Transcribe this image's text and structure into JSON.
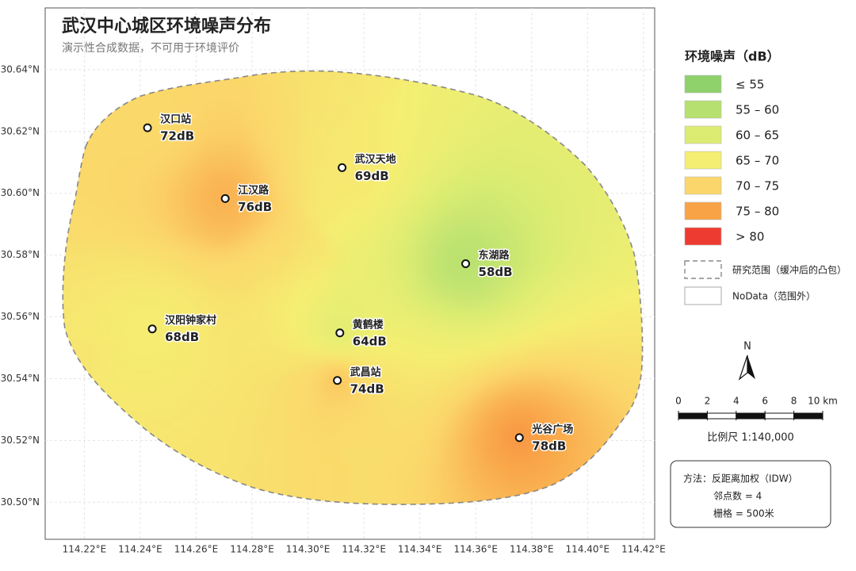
{
  "map": {
    "title": "武汉中心城区环境噪声分布",
    "subtitle": "演示性合成数据，不可用于环境评价",
    "xlim": [
      114.206,
      114.424
    ],
    "ylim": [
      30.488,
      30.66
    ],
    "xticks": [
      {
        "value": 114.22,
        "label": "114.22°E"
      },
      {
        "value": 114.24,
        "label": "114.24°E"
      },
      {
        "value": 114.26,
        "label": "114.26°E"
      },
      {
        "value": 114.28,
        "label": "114.28°E"
      },
      {
        "value": 114.3,
        "label": "114.30°E"
      },
      {
        "value": 114.32,
        "label": "114.32°E"
      },
      {
        "value": 114.34,
        "label": "114.34°E"
      },
      {
        "value": 114.36,
        "label": "114.36°E"
      },
      {
        "value": 114.38,
        "label": "114.38°E"
      },
      {
        "value": 114.4,
        "label": "114.40°E"
      },
      {
        "value": 114.42,
        "label": "114.42°E"
      }
    ],
    "yticks": [
      {
        "value": 30.5,
        "label": "30.50°N"
      },
      {
        "value": 30.52,
        "label": "30.52°N"
      },
      {
        "value": 30.54,
        "label": "30.54°N"
      },
      {
        "value": 30.56,
        "label": "30.56°N"
      },
      {
        "value": 30.58,
        "label": "30.58°N"
      },
      {
        "value": 30.6,
        "label": "30.60°N"
      },
      {
        "value": 30.62,
        "label": "30.62°N"
      },
      {
        "value": 30.64,
        "label": "30.64°N"
      }
    ],
    "stations": [
      {
        "name": "汉口站",
        "lon": 114.2426,
        "lat": 30.6212,
        "value": 72,
        "value_label": "72dB"
      },
      {
        "name": "江汉路",
        "lon": 114.2704,
        "lat": 30.5983,
        "value": 76,
        "value_label": "76dB"
      },
      {
        "name": "武汉天地",
        "lon": 114.3122,
        "lat": 30.6083,
        "value": 69,
        "value_label": "69dB"
      },
      {
        "name": "东湖路",
        "lon": 114.3564,
        "lat": 30.5772,
        "value": 58,
        "value_label": "58dB"
      },
      {
        "name": "汉阳钟家村",
        "lon": 114.2443,
        "lat": 30.5561,
        "value": 68,
        "value_label": "68dB"
      },
      {
        "name": "黄鹤楼",
        "lon": 114.3114,
        "lat": 30.5548,
        "value": 64,
        "value_label": "64dB"
      },
      {
        "name": "武昌站",
        "lon": 114.3105,
        "lat": 30.5394,
        "value": 74,
        "value_label": "74dB"
      },
      {
        "name": "光谷广场",
        "lon": 114.3756,
        "lat": 30.5209,
        "value": 78,
        "value_label": "78dB"
      }
    ]
  },
  "legend": {
    "title": "环境噪声（dB）",
    "class_breaks": [
      55,
      60,
      65,
      70,
      75,
      80
    ],
    "items": [
      {
        "label": "≤ 55",
        "color": "#8fd16a"
      },
      {
        "label": "55 – 60",
        "color": "#b6e070"
      },
      {
        "label": "60 – 65",
        "color": "#dcec72"
      },
      {
        "label": "65 – 70",
        "color": "#f4ef72"
      },
      {
        "label": "70 – 75",
        "color": "#fbd66a"
      },
      {
        "label": "75 – 80",
        "color": "#f9a347"
      },
      {
        "label": "> 80",
        "color": "#ee3b32"
      }
    ],
    "boundary_label": "研究范围（缓冲后的凸包）",
    "nodata_label": "NoData（范围外）"
  },
  "north_arrow": "N",
  "scale_bar": {
    "ticks": [
      0,
      2,
      4,
      6,
      8,
      {
        "value": 10,
        "label": "10 km"
      }
    ],
    "caption": "比例尺  1:140,000"
  },
  "method": [
    "方法：反距离加权（IDW）",
    "邻点数 = 4",
    "栅格 = 500米"
  ]
}
